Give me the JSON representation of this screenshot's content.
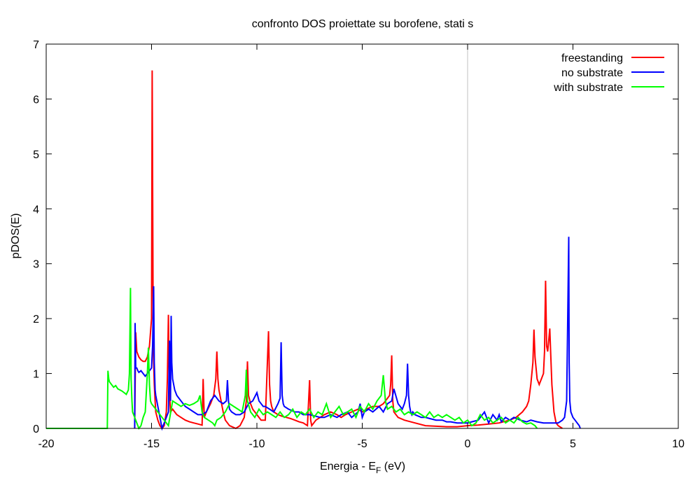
{
  "chart_data": {
    "type": "line",
    "title": "confronto DOS proiettate su borofene, stati s",
    "xlabel_main": "Energia - E",
    "xlabel_sub": "F",
    "xlabel_tail": " (eV)",
    "ylabel": "pDOS(E)",
    "xlim": [
      -20,
      10
    ],
    "ylim": [
      0,
      7
    ],
    "xticks": [
      "-20",
      "-15",
      "-10",
      "-5",
      "0",
      "5",
      "10"
    ],
    "yticks": [
      "0",
      "1",
      "2",
      "3",
      "4",
      "5",
      "6",
      "7"
    ],
    "grid": false,
    "vertical_reference_line_x": 0,
    "legend_position": "top-right",
    "series": [
      {
        "name": "freestanding",
        "color": "#ff0000",
        "x": [
          -15.8,
          -15.75,
          -15.7,
          -15.6,
          -15.5,
          -15.4,
          -15.3,
          -15.2,
          -15.1,
          -15.0,
          -14.97,
          -14.93,
          -14.9,
          -14.87,
          -14.83,
          -14.8,
          -14.7,
          -14.6,
          -14.5,
          -14.4,
          -14.3,
          -14.25,
          -14.2,
          -14.17,
          -14.13,
          -14.1,
          -14.0,
          -13.9,
          -13.8,
          -13.6,
          -13.4,
          -13.2,
          -13.0,
          -12.8,
          -12.6,
          -12.55,
          -12.5,
          -12.4,
          -12.2,
          -12.05,
          -11.95,
          -11.9,
          -11.85,
          -11.8,
          -11.7,
          -11.6,
          -11.5,
          -11.3,
          -11.0,
          -10.8,
          -10.6,
          -10.5,
          -10.45,
          -10.4,
          -10.3,
          -10.2,
          -10.0,
          -9.8,
          -9.6,
          -9.45,
          -9.4,
          -9.35,
          -9.3,
          -9.2,
          -9.0,
          -8.8,
          -8.6,
          -8.4,
          -8.2,
          -8.0,
          -7.8,
          -7.6,
          -7.5,
          -7.45,
          -7.4,
          -7.2,
          -7.0,
          -6.8,
          -6.5,
          -6.2,
          -6.0,
          -5.8,
          -5.5,
          -5.2,
          -5.0,
          -4.8,
          -4.5,
          -4.2,
          -4.0,
          -3.9,
          -3.8,
          -3.7,
          -3.65,
          -3.6,
          -3.55,
          -3.5,
          -3.3,
          -3.0,
          -2.5,
          -2.0,
          -1.5,
          -1.0,
          -0.5,
          0.0,
          0.5,
          1.0,
          1.5,
          2.0,
          2.3,
          2.6,
          2.8,
          2.9,
          3.0,
          3.1,
          3.15,
          3.2,
          3.3,
          3.4,
          3.5,
          3.6,
          3.65,
          3.7,
          3.75,
          3.8,
          3.85,
          3.9,
          3.95,
          4.0,
          4.1,
          4.2,
          4.3,
          4.5
        ],
        "y": [
          0.0,
          1.75,
          1.4,
          1.3,
          1.25,
          1.22,
          1.22,
          1.3,
          1.5,
          2.0,
          6.52,
          2.6,
          1.2,
          0.8,
          0.5,
          0.3,
          0.15,
          0.05,
          0.0,
          0.05,
          0.3,
          0.9,
          2.07,
          1.0,
          0.5,
          0.3,
          0.35,
          0.3,
          0.25,
          0.2,
          0.15,
          0.12,
          0.1,
          0.08,
          0.06,
          0.9,
          0.2,
          0.3,
          0.45,
          0.6,
          0.9,
          1.4,
          0.9,
          0.7,
          0.5,
          0.3,
          0.15,
          0.05,
          0.0,
          0.05,
          0.2,
          0.5,
          1.22,
          0.6,
          0.45,
          0.35,
          0.25,
          0.15,
          0.15,
          1.77,
          0.8,
          0.5,
          0.4,
          0.3,
          0.25,
          0.22,
          0.2,
          0.18,
          0.15,
          0.12,
          0.1,
          0.05,
          0.88,
          0.15,
          0.05,
          0.15,
          0.2,
          0.25,
          0.3,
          0.25,
          0.2,
          0.25,
          0.3,
          0.35,
          0.3,
          0.35,
          0.4,
          0.4,
          0.45,
          0.5,
          0.55,
          0.6,
          0.8,
          1.33,
          0.5,
          0.3,
          0.2,
          0.15,
          0.1,
          0.05,
          0.04,
          0.03,
          0.03,
          0.05,
          0.06,
          0.08,
          0.1,
          0.15,
          0.2,
          0.3,
          0.4,
          0.5,
          0.8,
          1.2,
          1.8,
          1.3,
          0.9,
          0.8,
          0.9,
          1.0,
          1.4,
          2.69,
          1.5,
          1.4,
          1.6,
          1.82,
          1.3,
          0.8,
          0.3,
          0.1,
          0.05,
          0.0
        ]
      },
      {
        "name": "no substrate",
        "color": "#0000ff",
        "x": [
          -15.8,
          -15.78,
          -15.75,
          -15.7,
          -15.65,
          -15.6,
          -15.5,
          -15.4,
          -15.3,
          -15.2,
          -15.1,
          -15.0,
          -14.95,
          -14.9,
          -14.87,
          -14.83,
          -14.8,
          -14.75,
          -14.7,
          -14.6,
          -14.5,
          -14.4,
          -14.3,
          -14.2,
          -14.15,
          -14.1,
          -14.07,
          -14.04,
          -14.0,
          -13.95,
          -13.9,
          -13.8,
          -13.7,
          -13.6,
          -13.4,
          -13.2,
          -13.0,
          -12.8,
          -12.6,
          -12.4,
          -12.2,
          -12.0,
          -11.8,
          -11.6,
          -11.45,
          -11.4,
          -11.35,
          -11.3,
          -11.2,
          -11.0,
          -10.8,
          -10.6,
          -10.4,
          -10.2,
          -10.0,
          -9.9,
          -9.8,
          -9.7,
          -9.6,
          -9.4,
          -9.2,
          -9.0,
          -8.9,
          -8.85,
          -8.8,
          -8.75,
          -8.7,
          -8.5,
          -8.2,
          -8.0,
          -7.8,
          -7.5,
          -7.2,
          -7.0,
          -6.8,
          -6.5,
          -6.2,
          -6.0,
          -5.7,
          -5.5,
          -5.2,
          -5.1,
          -5.0,
          -4.9,
          -4.7,
          -4.5,
          -4.2,
          -4.0,
          -3.8,
          -3.6,
          -3.5,
          -3.3,
          -3.2,
          -3.1,
          -3.0,
          -2.9,
          -2.85,
          -2.8,
          -2.75,
          -2.7,
          -2.65,
          -2.6,
          -2.5,
          -2.2,
          -2.0,
          -1.8,
          -1.5,
          -1.2,
          -1.0,
          -0.8,
          -0.5,
          -0.2,
          0.0,
          0.2,
          0.5,
          0.8,
          1.0,
          1.2,
          1.4,
          1.5,
          1.6,
          1.8,
          2.0,
          2.2,
          2.5,
          2.8,
          3.0,
          3.3,
          3.6,
          3.8,
          4.0,
          4.3,
          4.5,
          4.6,
          4.7,
          4.75,
          4.8,
          4.82,
          4.85,
          4.9,
          5.0,
          5.1,
          5.2,
          5.3,
          5.35
        ],
        "y": [
          0.0,
          1.92,
          1.1,
          1.1,
          1.05,
          1.02,
          1.05,
          1.0,
          0.95,
          1.0,
          1.05,
          1.1,
          1.5,
          2.59,
          1.2,
          0.7,
          0.6,
          0.5,
          0.4,
          0.2,
          0.0,
          0.1,
          0.2,
          0.3,
          1.6,
          0.5,
          2.05,
          1.2,
          0.9,
          0.8,
          0.7,
          0.6,
          0.55,
          0.5,
          0.4,
          0.35,
          0.3,
          0.25,
          0.25,
          0.3,
          0.5,
          0.6,
          0.5,
          0.45,
          0.5,
          0.88,
          0.5,
          0.35,
          0.3,
          0.25,
          0.25,
          0.3,
          0.45,
          0.5,
          0.65,
          0.5,
          0.45,
          0.4,
          0.4,
          0.35,
          0.3,
          0.45,
          0.55,
          1.57,
          0.6,
          0.45,
          0.4,
          0.35,
          0.3,
          0.3,
          0.25,
          0.25,
          0.22,
          0.2,
          0.2,
          0.25,
          0.2,
          0.25,
          0.3,
          0.2,
          0.3,
          0.45,
          0.2,
          0.3,
          0.35,
          0.3,
          0.4,
          0.3,
          0.45,
          0.5,
          0.72,
          0.45,
          0.4,
          0.35,
          0.45,
          0.6,
          1.18,
          0.6,
          0.4,
          0.3,
          0.25,
          0.3,
          0.25,
          0.2,
          0.2,
          0.18,
          0.15,
          0.15,
          0.12,
          0.12,
          0.1,
          0.1,
          0.1,
          0.12,
          0.15,
          0.3,
          0.1,
          0.25,
          0.15,
          0.25,
          0.12,
          0.2,
          0.15,
          0.2,
          0.15,
          0.12,
          0.15,
          0.12,
          0.1,
          0.1,
          0.1,
          0.1,
          0.15,
          0.2,
          0.5,
          1.97,
          3.49,
          1.2,
          0.5,
          0.3,
          0.2,
          0.15,
          0.1,
          0.05,
          0.0
        ]
      },
      {
        "name": "with substrate",
        "color": "#00ff00",
        "x": [
          -20.0,
          -17.5,
          -17.1,
          -17.07,
          -17.03,
          -17.0,
          -16.9,
          -16.8,
          -16.7,
          -16.6,
          -16.5,
          -16.4,
          -16.3,
          -16.2,
          -16.1,
          -16.05,
          -16.0,
          -15.97,
          -15.93,
          -15.9,
          -15.8,
          -15.7,
          -15.6,
          -15.5,
          -15.4,
          -15.3,
          -15.2,
          -15.15,
          -15.1,
          -15.05,
          -15.0,
          -14.9,
          -14.8,
          -14.7,
          -14.6,
          -14.5,
          -14.4,
          -14.3,
          -14.2,
          -14.0,
          -13.8,
          -13.6,
          -13.4,
          -13.2,
          -13.0,
          -12.8,
          -12.7,
          -12.6,
          -12.5,
          -12.3,
          -12.1,
          -12.0,
          -11.9,
          -11.7,
          -11.5,
          -11.3,
          -11.1,
          -10.9,
          -10.7,
          -10.55,
          -10.5,
          -10.45,
          -10.3,
          -10.1,
          -9.9,
          -9.7,
          -9.5,
          -9.3,
          -9.1,
          -8.9,
          -8.7,
          -8.5,
          -8.3,
          -8.1,
          -7.9,
          -7.7,
          -7.5,
          -7.3,
          -7.1,
          -6.9,
          -6.7,
          -6.5,
          -6.3,
          -6.1,
          -5.9,
          -5.7,
          -5.5,
          -5.3,
          -5.1,
          -4.9,
          -4.7,
          -4.5,
          -4.3,
          -4.1,
          -4.0,
          -3.9,
          -3.8,
          -3.6,
          -3.4,
          -3.2,
          -3.0,
          -2.8,
          -2.6,
          -2.4,
          -2.2,
          -2.0,
          -1.8,
          -1.6,
          -1.4,
          -1.2,
          -1.0,
          -0.8,
          -0.6,
          -0.4,
          -0.2,
          0.0,
          0.2,
          0.4,
          0.6,
          0.8,
          1.0,
          1.2,
          1.4,
          1.6,
          1.8,
          2.0,
          2.2,
          2.4,
          2.6,
          2.8,
          3.0,
          3.2,
          3.3
        ],
        "y": [
          0.0,
          0.0,
          0.0,
          1.05,
          0.9,
          0.85,
          0.8,
          0.75,
          0.78,
          0.72,
          0.7,
          0.68,
          0.65,
          0.62,
          0.7,
          1.0,
          2.56,
          0.9,
          0.5,
          0.3,
          0.2,
          0.1,
          0.0,
          0.05,
          0.2,
          0.3,
          1.0,
          1.47,
          0.8,
          0.5,
          0.45,
          0.4,
          0.35,
          0.3,
          0.25,
          0.2,
          0.15,
          0.1,
          0.05,
          0.5,
          0.45,
          0.4,
          0.45,
          0.42,
          0.45,
          0.5,
          0.6,
          0.3,
          0.2,
          0.15,
          0.1,
          0.05,
          0.15,
          0.2,
          0.3,
          0.45,
          0.4,
          0.35,
          0.3,
          0.6,
          1.07,
          0.5,
          0.3,
          0.2,
          0.35,
          0.25,
          0.3,
          0.25,
          0.2,
          0.3,
          0.2,
          0.25,
          0.35,
          0.2,
          0.3,
          0.25,
          0.35,
          0.2,
          0.3,
          0.25,
          0.45,
          0.2,
          0.3,
          0.4,
          0.25,
          0.3,
          0.35,
          0.2,
          0.4,
          0.3,
          0.45,
          0.35,
          0.5,
          0.6,
          0.97,
          0.5,
          0.35,
          0.4,
          0.3,
          0.35,
          0.25,
          0.3,
          0.25,
          0.3,
          0.25,
          0.2,
          0.3,
          0.2,
          0.25,
          0.2,
          0.25,
          0.2,
          0.15,
          0.2,
          0.1,
          0.15,
          0.05,
          0.1,
          0.25,
          0.15,
          0.2,
          0.1,
          0.15,
          0.2,
          0.1,
          0.15,
          0.1,
          0.2,
          0.12,
          0.08,
          0.1,
          0.05,
          0.0
        ]
      }
    ]
  }
}
